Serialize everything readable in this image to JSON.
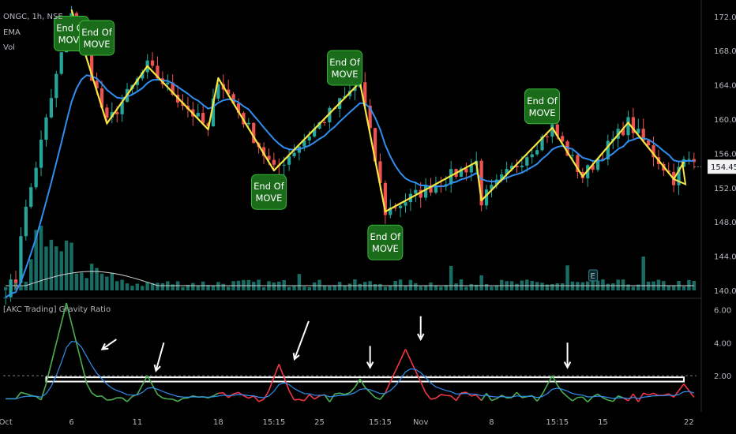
{
  "legend": {
    "symbol": "ONGC, 1h, NSE",
    "ema": "EMA",
    "vol": "Vol",
    "indicator": "[AKC Trading] Gravity Ratio"
  },
  "price_label": "154.45",
  "e_marker": "E",
  "callouts": [
    {
      "line1": "End Of",
      "line2": "MOVE",
      "bar": 13,
      "price": 170.0,
      "side": "up"
    },
    {
      "line1": "End Of",
      "line2": "MOVE",
      "bar": 18,
      "price": 169.5,
      "side": "down"
    },
    {
      "line1": "End Of",
      "line2": "MOVE",
      "bar": 52,
      "price": 151.5,
      "side": "up"
    },
    {
      "line1": "End Of",
      "line2": "MOVE",
      "bar": 67,
      "price": 166.0,
      "side": "down"
    },
    {
      "line1": "End Of",
      "line2": "MOVE",
      "bar": 75,
      "price": 145.6,
      "side": "up"
    },
    {
      "line1": "End Of",
      "line2": "MOVE",
      "bar": 106,
      "price": 161.5,
      "side": "down"
    }
  ],
  "chart_data": [
    {
      "type": "candlestick",
      "title": "ONGC, 1h, NSE",
      "ylim": [
        140,
        173
      ],
      "y_ticks": [
        140.0,
        144.0,
        148.0,
        152.0,
        156.0,
        160.0,
        164.0,
        168.0,
        172.0
      ],
      "x_tick_labels": [
        "Oct",
        "6",
        "11",
        "18",
        "15:15",
        "25",
        "15:15",
        "Nov",
        "8",
        "15:15",
        "15",
        "22"
      ],
      "x_tick_bars": [
        0,
        13,
        26,
        42,
        53,
        62,
        74,
        82,
        96,
        109,
        118,
        135
      ],
      "last_price": 154.45,
      "zigzag": [
        {
          "bar": 0,
          "price": 139
        },
        {
          "bar": 13,
          "price": 172.8
        },
        {
          "bar": 20,
          "price": 159.5
        },
        {
          "bar": 28,
          "price": 166.2
        },
        {
          "bar": 40,
          "price": 158.8
        },
        {
          "bar": 42,
          "price": 164.8
        },
        {
          "bar": 53,
          "price": 154.0
        },
        {
          "bar": 70,
          "price": 164.3
        },
        {
          "bar": 75,
          "price": 149.2
        },
        {
          "bar": 93,
          "price": 155.0
        },
        {
          "bar": 94,
          "price": 150.5
        },
        {
          "bar": 108,
          "price": 159.0
        },
        {
          "bar": 114,
          "price": 153.3
        },
        {
          "bar": 123,
          "price": 159.6
        },
        {
          "bar": 132,
          "price": 153.0
        },
        {
          "bar": 134,
          "price": 155.0
        }
      ],
      "series": [
        {
          "name": "EMA",
          "color": "#2f8ff0"
        },
        {
          "name": "Vol",
          "color": "#1f7a86"
        }
      ]
    },
    {
      "type": "line",
      "title": "[AKC Trading] Gravity Ratio",
      "ylim": [
        0,
        6.4
      ],
      "y_ticks": [
        2.0,
        4.0,
        6.0
      ],
      "band": [
        1.55,
        2.0
      ],
      "threshold": 2.0,
      "peaks": [
        {
          "bar": 12,
          "value": 6.1,
          "color": "#4caf50"
        },
        {
          "bar": 28,
          "value": 1.7,
          "color": "#4caf50"
        },
        {
          "bar": 54,
          "value": 2.4,
          "color": "#f23645"
        },
        {
          "bar": 70,
          "value": 1.5,
          "color": "#4caf50"
        },
        {
          "bar": 79,
          "value": 3.3,
          "color": "#f23645"
        },
        {
          "bar": 108,
          "value": 1.7,
          "color": "#4caf50"
        },
        {
          "bar": 134,
          "value": 1.2,
          "color": "#f23645"
        }
      ]
    }
  ],
  "colors": {
    "up": "#26a69a",
    "down": "#ef5350",
    "zigzag": "#f5e642",
    "callout_fill": "#1a6b1a",
    "callout_stroke": "#38b838",
    "ratio_green": "#4caf50",
    "ratio_red": "#f23645",
    "ratio_signal": "#2f8ff0"
  },
  "arrows": [
    {
      "bar": 20,
      "ratio": 4.2,
      "to_ratio": 3.6,
      "type": "diag"
    },
    {
      "bar": 30,
      "ratio": 4.0,
      "to_ratio": 2.3,
      "type": "diag-short"
    },
    {
      "bar": 58,
      "ratio": 5.3,
      "to_ratio": 3.0,
      "type": "diag"
    },
    {
      "bar": 72,
      "ratio": 3.8,
      "to_ratio": 2.5,
      "type": "down"
    },
    {
      "bar": 82,
      "ratio": 5.6,
      "to_ratio": 4.2,
      "type": "down"
    },
    {
      "bar": 111,
      "ratio": 4.0,
      "to_ratio": 2.5,
      "type": "down"
    }
  ]
}
